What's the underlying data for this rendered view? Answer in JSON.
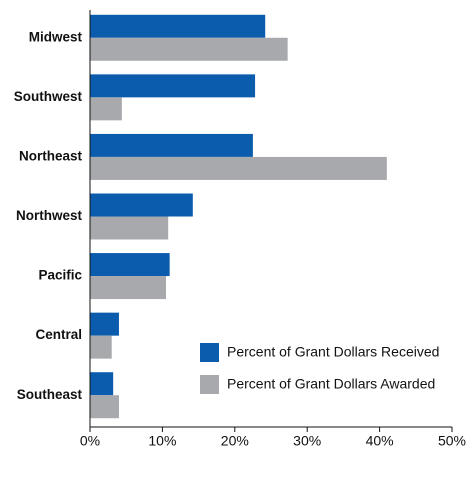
{
  "chart_data": {
    "type": "hbar",
    "categories": [
      "Midwest",
      "Southwest",
      "Northeast",
      "Northwest",
      "Pacific",
      "Central",
      "Southeast"
    ],
    "series": [
      {
        "name": "Percent of Grant Dollars Received",
        "color": "#0b5cad",
        "values": [
          24.2,
          22.8,
          22.5,
          14.2,
          11.0,
          4.0,
          3.2
        ]
      },
      {
        "name": "Percent of Grant Dollars Awarded",
        "color": "#a7a9ac",
        "values": [
          27.3,
          4.4,
          41.0,
          10.8,
          10.5,
          3.0,
          4.0
        ]
      }
    ],
    "xlim": [
      0,
      50
    ],
    "xticks": [
      {
        "value": 0,
        "label": "0%"
      },
      {
        "value": 10,
        "label": "10%"
      },
      {
        "value": 20,
        "label": "20%"
      },
      {
        "value": 30,
        "label": "30%"
      },
      {
        "value": 40,
        "label": "40%"
      },
      {
        "value": 50,
        "label": "50%"
      }
    ],
    "legend": "lower right",
    "grid": false
  }
}
